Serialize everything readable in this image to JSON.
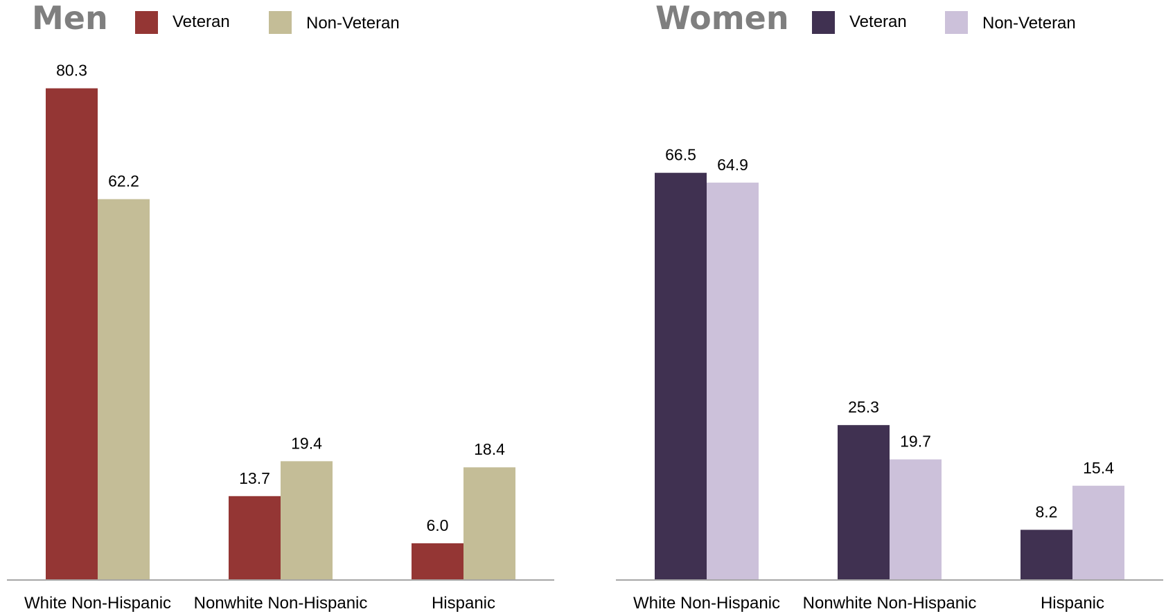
{
  "chart_data": [
    {
      "type": "bar",
      "title": "Men",
      "categories": [
        "White Non-Hispanic",
        "Nonwhite Non-Hispanic",
        "Hispanic"
      ],
      "series": [
        {
          "name": "Veteran",
          "values": [
            80.3,
            13.7,
            6.0
          ],
          "labels": [
            "80.3",
            "13.7",
            "6.0"
          ],
          "color": "#943634"
        },
        {
          "name": "Non-Veteran",
          "values": [
            62.2,
            19.4,
            18.4
          ],
          "labels": [
            "62.2",
            "19.4",
            "18.4"
          ],
          "color": "#C4BD97"
        }
      ],
      "ylim": [
        0,
        85
      ],
      "grid": false,
      "legend_position": "top"
    },
    {
      "type": "bar",
      "title": "Women",
      "categories": [
        "White Non-Hispanic",
        "Nonwhite Non-Hispanic",
        "Hispanic"
      ],
      "series": [
        {
          "name": "Veteran",
          "values": [
            66.5,
            25.3,
            8.2
          ],
          "labels": [
            "66.5",
            "25.3",
            "8.2"
          ],
          "color": "#403151"
        },
        {
          "name": "Non-Veteran",
          "values": [
            64.9,
            19.7,
            15.4
          ],
          "labels": [
            "64.9",
            "19.7",
            "15.4"
          ],
          "color": "#CCC1DA"
        }
      ],
      "ylim": [
        0,
        85
      ],
      "grid": false,
      "legend_position": "top"
    }
  ],
  "colors": {
    "title_text": "#7F7F7F",
    "axis_line": "#A6A6A6",
    "label_text": "#000000"
  }
}
